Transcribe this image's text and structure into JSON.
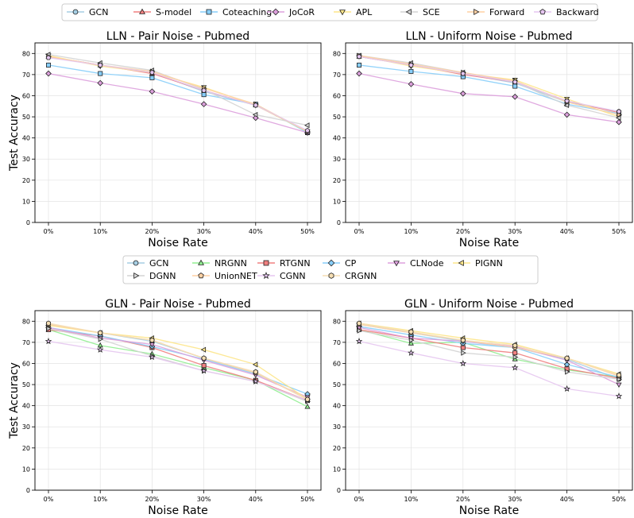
{
  "legend_top": [
    "GCN",
    "S-model",
    "Coteaching",
    "JoCoR",
    "APL",
    "SCE",
    "Forward",
    "Backward"
  ],
  "legend_bottom": [
    "GCN",
    "NRGNN",
    "RTGNN",
    "CP",
    "CLNode",
    "PIGNN",
    "DGNN",
    "UnionNET",
    "CGNN",
    "CRGNN"
  ],
  "styles": {
    "GCN": {
      "color": "#a6cee3",
      "marker": "o"
    },
    "S-model": {
      "color": "#f08080",
      "marker": "^"
    },
    "Coteaching": {
      "color": "#87cefa",
      "marker": "s"
    },
    "JoCoR": {
      "color": "#dda0dd",
      "marker": "D"
    },
    "APL": {
      "color": "#fde68a",
      "marker": "v"
    },
    "SCE": {
      "color": "#d3d3d3",
      "marker": "<"
    },
    "Forward": {
      "color": "#ffd1a4",
      "marker": ">"
    },
    "Backward": {
      "color": "#e6c6f0",
      "marker": "p"
    },
    "NRGNN": {
      "color": "#90ee90",
      "marker": "^"
    },
    "RTGNN": {
      "color": "#f08080",
      "marker": "s"
    },
    "CP": {
      "color": "#87cefa",
      "marker": "D"
    },
    "CLNode": {
      "color": "#dda0dd",
      "marker": "v"
    },
    "PIGNN": {
      "color": "#fde68a",
      "marker": "<"
    },
    "DGNN": {
      "color": "#d3d3d3",
      "marker": ">"
    },
    "UnionNET": {
      "color": "#ffd1a4",
      "marker": "p"
    },
    "CGNN": {
      "color": "#e6c6f0",
      "marker": "*"
    },
    "CRGNN": {
      "color": "#f5deb3",
      "marker": "h"
    }
  },
  "chart_data": [
    {
      "type": "line",
      "title": "LLN - Pair Noise - Pubmed",
      "xlabel": "Noise Rate",
      "ylabel": "Test Accuracy",
      "categories": [
        "0%",
        "10%",
        "20%",
        "30%",
        "40%",
        "50%"
      ],
      "ylim": [
        0,
        85
      ],
      "yticks": [
        0,
        10,
        20,
        30,
        40,
        50,
        60,
        70,
        80
      ],
      "grid": true,
      "series": [
        {
          "name": "GCN",
          "values": [
            78.5,
            74.5,
            71.0,
            62.0,
            55.5,
            43.0
          ]
        },
        {
          "name": "S-model",
          "values": [
            78.5,
            74.5,
            70.5,
            62.5,
            55.5,
            43.0
          ]
        },
        {
          "name": "Coteaching",
          "values": [
            74.5,
            70.5,
            68.5,
            60.5,
            56.0,
            42.5
          ]
        },
        {
          "name": "JoCoR",
          "values": [
            70.5,
            66.0,
            62.0,
            56.0,
            49.5,
            42.5
          ]
        },
        {
          "name": "APL",
          "values": [
            79.0,
            74.0,
            71.0,
            64.0,
            55.5,
            43.0
          ]
        },
        {
          "name": "SCE",
          "values": [
            79.5,
            75.5,
            72.0,
            63.0,
            51.0,
            46.0
          ]
        },
        {
          "name": "Forward",
          "values": [
            78.5,
            74.5,
            71.5,
            63.5,
            56.0,
            43.0
          ]
        },
        {
          "name": "Backward",
          "values": [
            78.0,
            74.5,
            71.0,
            62.5,
            55.5,
            43.5
          ]
        }
      ]
    },
    {
      "type": "line",
      "title": "LLN - Uniform Noise - Pubmed",
      "xlabel": "Noise Rate",
      "ylabel": "",
      "categories": [
        "0%",
        "10%",
        "20%",
        "30%",
        "40%",
        "50%"
      ],
      "ylim": [
        0,
        85
      ],
      "yticks": [
        0,
        10,
        20,
        30,
        40,
        50,
        60,
        70,
        80
      ],
      "grid": true,
      "series": [
        {
          "name": "GCN",
          "values": [
            78.5,
            74.5,
            70.5,
            66.0,
            57.0,
            52.5
          ]
        },
        {
          "name": "S-model",
          "values": [
            78.5,
            74.5,
            70.0,
            66.5,
            57.5,
            52.0
          ]
        },
        {
          "name": "Coteaching",
          "values": [
            74.5,
            71.5,
            69.0,
            64.5,
            56.0,
            51.5
          ]
        },
        {
          "name": "JoCoR",
          "values": [
            70.5,
            65.5,
            61.0,
            59.5,
            51.0,
            47.5
          ]
        },
        {
          "name": "APL",
          "values": [
            79.0,
            74.0,
            70.5,
            67.5,
            58.5,
            50.0
          ]
        },
        {
          "name": "SCE",
          "values": [
            79.0,
            75.5,
            71.0,
            66.5,
            55.5,
            49.5
          ]
        },
        {
          "name": "Forward",
          "values": [
            79.0,
            75.0,
            71.0,
            67.0,
            57.0,
            51.0
          ]
        },
        {
          "name": "Backward",
          "values": [
            78.5,
            74.5,
            70.5,
            66.5,
            57.5,
            52.5
          ]
        }
      ]
    },
    {
      "type": "line",
      "title": "GLN - Pair Noise - Pubmed",
      "xlabel": "Noise Rate",
      "ylabel": "Test Accuracy",
      "categories": [
        "0%",
        "10%",
        "20%",
        "30%",
        "40%",
        "50%"
      ],
      "ylim": [
        0,
        85
      ],
      "yticks": [
        0,
        10,
        20,
        30,
        40,
        50,
        60,
        70,
        80
      ],
      "grid": true,
      "series": [
        {
          "name": "GCN",
          "values": [
            78.5,
            74.5,
            70.5,
            62.5,
            55.5,
            43.0
          ]
        },
        {
          "name": "NRGNN",
          "values": [
            76.0,
            68.5,
            64.5,
            58.0,
            52.0,
            39.5
          ]
        },
        {
          "name": "RTGNN",
          "values": [
            76.0,
            73.0,
            67.5,
            59.0,
            52.0,
            42.5
          ]
        },
        {
          "name": "CP",
          "values": [
            77.0,
            73.0,
            68.0,
            62.0,
            55.0,
            45.5
          ]
        },
        {
          "name": "CLNode",
          "values": [
            77.0,
            72.0,
            69.0,
            61.5,
            54.5,
            44.0
          ]
        },
        {
          "name": "PIGNN",
          "values": [
            78.0,
            74.5,
            72.0,
            66.5,
            59.5,
            43.0
          ]
        },
        {
          "name": "DGNN",
          "values": [
            76.5,
            71.5,
            63.5,
            56.5,
            51.5,
            42.0
          ]
        },
        {
          "name": "UnionNET",
          "values": [
            78.5,
            74.5,
            71.0,
            62.5,
            55.5,
            43.0
          ]
        },
        {
          "name": "CGNN",
          "values": [
            70.5,
            66.5,
            63.0,
            56.5,
            51.5,
            42.5
          ]
        },
        {
          "name": "CRGNN",
          "values": [
            79.0,
            74.5,
            71.0,
            62.5,
            56.0,
            43.0
          ]
        }
      ]
    },
    {
      "type": "line",
      "title": "GLN - Uniform Noise - Pubmed",
      "xlabel": "Noise Rate",
      "ylabel": "",
      "categories": [
        "0%",
        "10%",
        "20%",
        "30%",
        "40%",
        "50%"
      ],
      "ylim": [
        0,
        85
      ],
      "yticks": [
        0,
        10,
        20,
        30,
        40,
        50,
        60,
        70,
        80
      ],
      "grid": true,
      "series": [
        {
          "name": "GCN",
          "values": [
            78.5,
            74.5,
            70.5,
            67.5,
            62.0,
            52.5
          ]
        },
        {
          "name": "NRGNN",
          "values": [
            76.0,
            69.5,
            70.0,
            62.0,
            57.0,
            53.5
          ]
        },
        {
          "name": "RTGNN",
          "values": [
            76.0,
            72.0,
            67.5,
            65.0,
            57.5,
            53.0
          ]
        },
        {
          "name": "CP",
          "values": [
            77.5,
            73.5,
            69.5,
            67.5,
            59.5,
            53.5
          ]
        },
        {
          "name": "CLNode",
          "values": [
            77.0,
            72.0,
            70.5,
            68.0,
            61.5,
            50.0
          ]
        },
        {
          "name": "PIGNN",
          "values": [
            79.0,
            75.5,
            72.0,
            69.0,
            62.5,
            55.0
          ]
        },
        {
          "name": "DGNN",
          "values": [
            75.5,
            71.0,
            65.0,
            63.0,
            56.0,
            52.5
          ]
        },
        {
          "name": "UnionNET",
          "values": [
            78.5,
            74.5,
            71.0,
            67.5,
            62.5,
            54.0
          ]
        },
        {
          "name": "CGNN",
          "values": [
            70.5,
            65.0,
            60.0,
            58.0,
            48.0,
            44.5
          ]
        },
        {
          "name": "CRGNN",
          "values": [
            79.0,
            75.0,
            71.0,
            68.5,
            62.5,
            54.5
          ]
        }
      ]
    }
  ]
}
